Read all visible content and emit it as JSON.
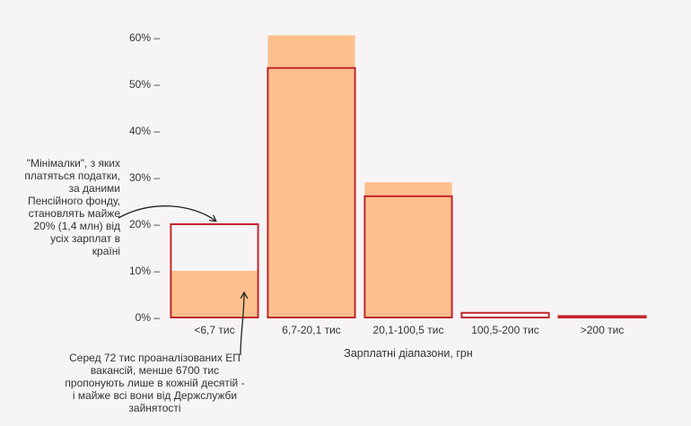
{
  "chart_data": {
    "type": "bar",
    "xlabel": "Зарплатні діапазони, грн",
    "ylabel": "",
    "ylim": [
      0,
      60
    ],
    "yticks": [
      0,
      10,
      20,
      30,
      40,
      50,
      60
    ],
    "ytick_suffix": "% –",
    "categories": [
      "<6,7 тис",
      "6,7-20,1 тис",
      "20,1-100,5 тис",
      "100,5-200 тис",
      ">200 тис"
    ],
    "series": [
      {
        "values": [
          10,
          60.5,
          29,
          0,
          0
        ],
        "color": "#fdc08c",
        "style": "filled"
      },
      {
        "values": [
          20,
          53.5,
          26,
          1,
          0.3
        ],
        "color": "#c0262c",
        "style": "outline"
      }
    ],
    "grid": false,
    "legend": "none"
  },
  "annotations": {
    "left": "\"Мінімалки\", з яких платяться податки, за даними Пенсійного фонду, становлять майже 20% (1,4 млн) від усіх зарплат в країні",
    "bottom": "Серед 72 тис проаналізованих ЕП вакансій, менше 6700 тис пропонують лише в кожній десятій - і майже всі вони від Держслужби зайнятості"
  }
}
